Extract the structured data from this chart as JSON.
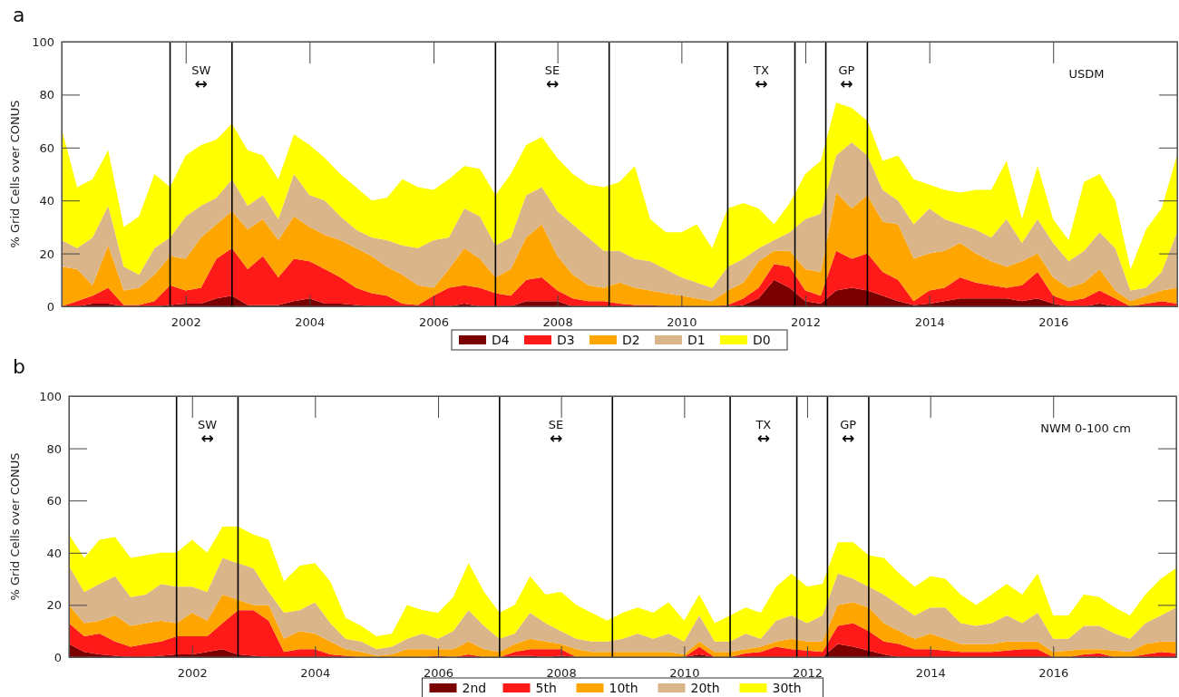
{
  "chart_data": [
    {
      "type": "area",
      "stacked": true,
      "title": "a",
      "ylabel": "% Grid Cells over CONUS",
      "legend": "bottom",
      "xlim": [
        "2000",
        "2018"
      ],
      "xticks": [
        "2002",
        "2004",
        "2006",
        "2008",
        "2010",
        "2012",
        "2014",
        "2016"
      ],
      "ylim": [
        0,
        100
      ],
      "yticks": [
        0,
        20,
        40,
        60,
        80,
        100
      ],
      "x": [
        "2000-01",
        "2000-04",
        "2000-07",
        "2000-10",
        "2001-01",
        "2001-04",
        "2001-07",
        "2001-10",
        "2002-01",
        "2002-04",
        "2002-07",
        "2002-10",
        "2003-01",
        "2003-04",
        "2003-07",
        "2003-10",
        "2004-01",
        "2004-04",
        "2004-07",
        "2004-10",
        "2005-01",
        "2005-04",
        "2005-07",
        "2005-10",
        "2006-01",
        "2006-04",
        "2006-07",
        "2006-10",
        "2007-01",
        "2007-04",
        "2007-07",
        "2007-10",
        "2008-01",
        "2008-04",
        "2008-07",
        "2008-10",
        "2009-01",
        "2009-04",
        "2009-07",
        "2009-10",
        "2010-01",
        "2010-04",
        "2010-07",
        "2010-10",
        "2011-01",
        "2011-04",
        "2011-07",
        "2011-10",
        "2012-01",
        "2012-04",
        "2012-07",
        "2012-10",
        "2013-01",
        "2013-04",
        "2013-07",
        "2013-10",
        "2014-01",
        "2014-04",
        "2014-07",
        "2014-10",
        "2015-01",
        "2015-04",
        "2015-07",
        "2015-10",
        "2016-01",
        "2016-04",
        "2016-07",
        "2016-10",
        "2017-01",
        "2017-04",
        "2017-07",
        "2017-10",
        "2017-12-31"
      ],
      "series": [
        {
          "name": "D4",
          "color": "#7a0000",
          "values": [
            0,
            0,
            1,
            1,
            0,
            0,
            0,
            0.5,
            1,
            1,
            3,
            4,
            0.5,
            0.5,
            0.5,
            2,
            3,
            1,
            1,
            0.5,
            0,
            0,
            0,
            0,
            0,
            0,
            1,
            0,
            0,
            0,
            2,
            2,
            2,
            0,
            0,
            0,
            0,
            0,
            0,
            0,
            0,
            0,
            0,
            0,
            0.5,
            3,
            10,
            7,
            2,
            1,
            6,
            7,
            6,
            4,
            2,
            0.5,
            1,
            2,
            3,
            3,
            3,
            3,
            2,
            3,
            1,
            0,
            0,
            1,
            0,
            0,
            0,
            0,
            0
          ]
        },
        {
          "name": "D3",
          "color": "#ff1a1a",
          "values": [
            0,
            2,
            3,
            6,
            0.5,
            0.5,
            2,
            7.5,
            5,
            6,
            15,
            18,
            13.5,
            18.5,
            10.5,
            16,
            14,
            13,
            10,
            6.5,
            5,
            4,
            1,
            0.5,
            4,
            7,
            7,
            7,
            5,
            4,
            8,
            9,
            4,
            3,
            2,
            2,
            1,
            0.5,
            0.5,
            0,
            0,
            0,
            0,
            0.5,
            2.5,
            4,
            6,
            8,
            4,
            3,
            15,
            11,
            14,
            9,
            8,
            1.5,
            5,
            5,
            8,
            6,
            5,
            4,
            6,
            10,
            3,
            2,
            3,
            5,
            3,
            0,
            1,
            2,
            1
          ]
        },
        {
          "name": "D2",
          "color": "#ffa500",
          "values": [
            15,
            12,
            4,
            16,
            5.5,
            6.5,
            10,
            11,
            12,
            19,
            13,
            14,
            15,
            14,
            14,
            16,
            13,
            13,
            14,
            15,
            14,
            11,
            11,
            7.5,
            3,
            7,
            14,
            11,
            6,
            10,
            16,
            20,
            13,
            9,
            6,
            5,
            8,
            6.5,
            5.5,
            5,
            4,
            3,
            2,
            5.5,
            6,
            10,
            5,
            6,
            8,
            9,
            22,
            19,
            22,
            19,
            21,
            16,
            14,
            14,
            13,
            11,
            9,
            8,
            9,
            7,
            7,
            5,
            6,
            8,
            3,
            2,
            3,
            4,
            6
          ]
        },
        {
          "name": "D1",
          "color": "#dbb58a",
          "values": [
            10,
            8,
            18,
            15,
            9,
            5,
            10,
            7,
            16,
            12,
            10,
            12,
            9,
            9,
            8,
            16,
            12,
            13,
            9,
            7,
            7,
            10,
            11,
            14,
            18,
            12,
            15,
            16,
            12,
            12,
            16,
            14,
            17,
            19,
            18,
            14,
            12,
            11,
            11,
            9,
            7,
            6,
            5,
            9,
            9,
            5,
            4,
            7,
            19,
            22,
            14,
            25,
            15,
            12,
            9,
            13,
            17,
            12,
            7,
            9,
            9,
            18,
            7,
            13,
            13,
            10,
            12,
            14,
            16,
            4,
            3,
            7,
            21
          ]
        },
        {
          "name": "D0",
          "color": "#ffff00",
          "values": [
            42,
            23,
            22,
            21,
            15,
            22,
            28,
            19,
            23,
            23,
            22,
            21,
            21,
            15,
            15,
            15,
            19,
            16,
            16,
            16,
            14,
            16,
            25,
            23,
            19,
            22,
            16,
            18,
            19,
            24,
            19,
            19,
            20,
            19,
            20,
            24,
            26,
            35,
            16,
            14,
            17,
            22,
            15,
            22,
            21,
            15,
            6,
            11,
            17,
            20,
            20,
            13,
            13,
            11,
            17,
            17,
            9,
            11,
            12,
            15,
            18,
            22,
            9,
            20,
            9,
            8,
            26,
            22,
            18,
            8,
            22,
            24,
            29
          ]
        }
      ],
      "ref_lines": [
        {
          "axis": "x",
          "value": "2001-10",
          "color": "#000000"
        },
        {
          "axis": "x",
          "value": "2002-10",
          "color": "#000000"
        },
        {
          "axis": "x",
          "value": "2007-01",
          "color": "#000000"
        },
        {
          "axis": "x",
          "value": "2008-11",
          "color": "#000000"
        },
        {
          "axis": "x",
          "value": "2010-10",
          "color": "#000000"
        },
        {
          "axis": "x",
          "value": "2011-11",
          "color": "#000000"
        },
        {
          "axis": "x",
          "value": "2012-05",
          "color": "#000000"
        },
        {
          "axis": "x",
          "value": "2013-01",
          "color": "#000000"
        }
      ],
      "annotations": [
        "SW\n↔",
        "SE\n↔",
        "TX\n↔",
        "GP\n↔",
        "USDM"
      ]
    },
    {
      "type": "area",
      "stacked": true,
      "title": "b",
      "ylabel": "% Grid Cells over CONUS",
      "legend": "bottom",
      "xlim": [
        "2000",
        "2018"
      ],
      "xticks": [
        "2002",
        "2004",
        "2006",
        "2008",
        "2010",
        "2012",
        "2014",
        "2016"
      ],
      "ylim": [
        0,
        100
      ],
      "yticks": [
        0,
        20,
        40,
        60,
        80,
        100
      ],
      "x": [
        "2000-01",
        "2000-04",
        "2000-07",
        "2000-10",
        "2001-01",
        "2001-04",
        "2001-07",
        "2001-10",
        "2002-01",
        "2002-04",
        "2002-07",
        "2002-10",
        "2003-01",
        "2003-04",
        "2003-07",
        "2003-10",
        "2004-01",
        "2004-04",
        "2004-07",
        "2004-10",
        "2005-01",
        "2005-04",
        "2005-07",
        "2005-10",
        "2006-01",
        "2006-04",
        "2006-07",
        "2006-10",
        "2007-01",
        "2007-04",
        "2007-07",
        "2007-10",
        "2008-01",
        "2008-04",
        "2008-07",
        "2008-10",
        "2009-01",
        "2009-04",
        "2009-07",
        "2009-10",
        "2010-01",
        "2010-04",
        "2010-07",
        "2010-10",
        "2011-01",
        "2011-04",
        "2011-07",
        "2011-10",
        "2012-01",
        "2012-04",
        "2012-07",
        "2012-10",
        "2013-01",
        "2013-04",
        "2013-07",
        "2013-10",
        "2014-01",
        "2014-04",
        "2014-07",
        "2014-10",
        "2015-01",
        "2015-04",
        "2015-07",
        "2015-10",
        "2016-01",
        "2016-04",
        "2016-07",
        "2016-10",
        "2017-01",
        "2017-04",
        "2017-07",
        "2017-10",
        "2017-12-31"
      ],
      "series": [
        {
          "name": "2nd",
          "color": "#7a0000",
          "values": [
            5,
            2,
            1,
            0.5,
            0,
            0,
            0.5,
            1,
            1,
            2,
            3,
            1,
            0.5,
            0,
            0,
            0,
            0,
            0,
            0,
            0,
            0,
            0,
            0,
            0,
            0,
            0,
            0,
            0,
            0,
            0.5,
            0.5,
            0,
            0.5,
            0,
            0,
            0,
            0,
            0,
            0,
            0,
            0,
            1,
            0,
            0,
            0,
            0,
            0,
            0,
            0,
            0,
            5,
            4,
            2.5,
            1,
            0,
            0,
            0,
            0,
            0,
            0,
            0,
            0,
            0,
            0,
            0,
            0,
            0,
            0,
            0,
            0,
            0,
            0,
            0
          ]
        },
        {
          "name": "5th",
          "color": "#ff1a1a",
          "values": [
            8,
            6,
            8,
            5.5,
            4,
            5,
            5.5,
            7,
            7,
            6,
            10,
            17,
            17.5,
            14,
            2,
            3,
            3,
            1,
            0.5,
            0,
            0,
            0,
            0,
            0,
            0.5,
            0,
            1,
            0,
            0,
            1.5,
            2.5,
            3,
            2.5,
            0,
            0,
            0,
            0,
            0,
            0,
            0,
            0,
            3,
            0,
            0,
            1.5,
            2,
            4,
            3,
            2.5,
            2,
            7,
            9,
            7.5,
            5,
            5,
            3,
            3,
            2.5,
            2,
            2,
            2,
            2.5,
            3,
            3,
            0,
            0,
            1,
            1.5,
            0,
            0,
            1,
            2,
            1.5
          ]
        },
        {
          "name": "10th",
          "color": "#ffa500",
          "values": [
            7,
            5,
            5,
            10,
            8,
            8,
            8,
            5,
            9,
            6,
            11,
            4,
            2,
            6,
            5,
            7,
            6,
            5,
            2.5,
            2,
            0.5,
            1,
            3,
            3,
            2.5,
            3,
            5,
            3,
            2,
            3,
            4,
            3,
            2,
            3,
            2,
            2,
            2,
            2,
            2,
            2,
            1,
            2,
            2,
            2,
            1.5,
            2,
            2,
            4,
            3.5,
            4,
            8,
            8,
            9,
            7,
            5,
            4,
            6,
            4.5,
            3,
            3,
            3,
            3.5,
            3,
            3,
            2,
            2.5,
            2,
            1.5,
            2.5,
            2,
            4,
            4,
            4.5
          ]
        },
        {
          "name": "20th",
          "color": "#dbb58a",
          "values": [
            15,
            12,
            14,
            15,
            11,
            11,
            14,
            14,
            10,
            11,
            14,
            14,
            14,
            5,
            10,
            8,
            12,
            7,
            4,
            4,
            2.5,
            3,
            4,
            6,
            4,
            7,
            12,
            9,
            5,
            4,
            10,
            7,
            5,
            4,
            4,
            4,
            5,
            7,
            5,
            7,
            5,
            10,
            4,
            4,
            6,
            3,
            8,
            9,
            7,
            10,
            12,
            9,
            8,
            11,
            10,
            9,
            10,
            12,
            8,
            7,
            8,
            10,
            7,
            11,
            5,
            4.5,
            9,
            9,
            6.5,
            5,
            8,
            10,
            13
          ]
        },
        {
          "name": "30th",
          "color": "#ffff00",
          "values": [
            12,
            13,
            17,
            15,
            15,
            15,
            12,
            13,
            18,
            15,
            12,
            14,
            13,
            20,
            12,
            17,
            15,
            16,
            8,
            6,
            5,
            5,
            13,
            9,
            10,
            13,
            18,
            13,
            10,
            11,
            14,
            11,
            15,
            13,
            11,
            8,
            10,
            10,
            10,
            12,
            8,
            8,
            7,
            10,
            10,
            10,
            13,
            16,
            14,
            12,
            12,
            14,
            12,
            14,
            12,
            11,
            12,
            11,
            11,
            8,
            11,
            12,
            11,
            15,
            9,
            9,
            12,
            11,
            10,
            9,
            11,
            14,
            15
          ]
        }
      ],
      "ref_lines": [
        {
          "axis": "x",
          "value": "2001-10",
          "color": "#000000"
        },
        {
          "axis": "x",
          "value": "2002-10",
          "color": "#000000"
        },
        {
          "axis": "x",
          "value": "2007-01",
          "color": "#000000"
        },
        {
          "axis": "x",
          "value": "2008-11",
          "color": "#000000"
        },
        {
          "axis": "x",
          "value": "2010-10",
          "color": "#000000"
        },
        {
          "axis": "x",
          "value": "2011-11",
          "color": "#000000"
        },
        {
          "axis": "x",
          "value": "2012-05",
          "color": "#000000"
        },
        {
          "axis": "x",
          "value": "2013-01",
          "color": "#000000"
        }
      ],
      "annotations": [
        "SW\n↔",
        "SE\n↔",
        "TX\n↔",
        "GP\n↔",
        "NWM 0-100 cm"
      ]
    }
  ]
}
